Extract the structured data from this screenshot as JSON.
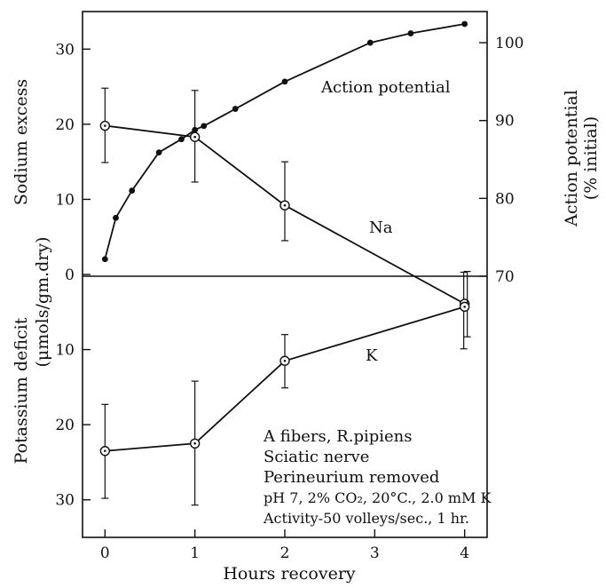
{
  "chart_data": {
    "type": "line",
    "xlabel": "Hours recovery",
    "x_ticks": [
      0,
      1,
      2,
      3,
      4
    ],
    "xlim": [
      -0.25,
      4.25
    ],
    "left_axis": {
      "label_top_line1": "Sodium excess",
      "label_mid": "(μmols/gm.dry)",
      "label_bottom_line1": "Potassium deficit",
      "ylim": [
        -35,
        35
      ],
      "ticks": [
        30,
        20,
        10,
        0,
        -10,
        -20,
        -30
      ],
      "tick_labels": [
        "30",
        "20",
        "10",
        "0",
        "10",
        "20",
        "30"
      ]
    },
    "right_axis": {
      "label_line1": "Action potential",
      "label_line2": "(% initial)",
      "ylim": [
        70,
        104
      ],
      "ticks": [
        70,
        80,
        90,
        100
      ],
      "tick_labels": [
        "70",
        "80",
        "90",
        "100"
      ]
    },
    "series": [
      {
        "name": "Action potential",
        "axis": "right",
        "marker": "dot",
        "x": [
          0,
          0.12,
          0.3,
          0.6,
          0.85,
          1.0,
          1.1,
          1.45,
          2.0,
          2.95,
          3.4,
          4.0
        ],
        "y": [
          72.2,
          77.5,
          81.0,
          85.9,
          87.6,
          88.8,
          89.3,
          91.5,
          95.0,
          100.0,
          101.2,
          102.4
        ]
      },
      {
        "name": "Na",
        "axis": "left",
        "marker": "open-circle",
        "x": [
          0,
          1,
          2,
          4
        ],
        "y": [
          19.8,
          18.3,
          9.2,
          -3.9
        ],
        "err_low": [
          14.9,
          12.3,
          4.5,
          -9.9
        ],
        "err_high": [
          24.8,
          24.5,
          15.0,
          0.3
        ]
      },
      {
        "name": "K",
        "axis": "left",
        "marker": "open-circle",
        "x": [
          0,
          1,
          2,
          4
        ],
        "y": [
          -23.5,
          -22.5,
          -11.5,
          -4.3
        ],
        "err_low": [
          -29.8,
          -30.7,
          -15.1,
          -8.3
        ],
        "err_high": [
          -17.3,
          -14.2,
          -8.0,
          0.4
        ]
      }
    ],
    "annotations": [
      "A fibers, R.pipiens",
      "Sciatic nerve",
      "Perineurium removed",
      "pH 7, 2% CO₂, 20°C., 2.0 mM K",
      "Activity-50 volleys/sec., 1 hr."
    ]
  }
}
